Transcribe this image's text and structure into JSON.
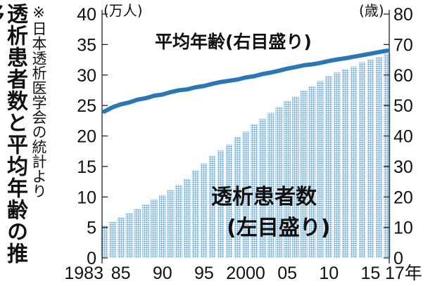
{
  "title": "透析患者数と平均年齢の推移",
  "note": "※日本透析医学会の統計より",
  "chart_data": {
    "type": "bar",
    "x": [
      1983,
      1984,
      1985,
      1986,
      1987,
      1988,
      1989,
      1990,
      1991,
      1992,
      1993,
      1994,
      1995,
      1996,
      1997,
      1998,
      1999,
      2000,
      2001,
      2002,
      2003,
      2004,
      2005,
      2006,
      2007,
      2008,
      2009,
      2010,
      2011,
      2012,
      2013,
      2014,
      2015,
      2016,
      2017
    ],
    "xtick_labels": [
      "1983",
      "85",
      "90",
      "95",
      "2000",
      "05",
      "10",
      "15",
      "17年"
    ],
    "xtick_years": [
      1983,
      1985,
      1990,
      1995,
      2000,
      2005,
      2010,
      2015,
      2017
    ],
    "left_unit": "(万人)",
    "right_unit": "(歳)",
    "yleft_ticks": [
      0,
      5,
      10,
      15,
      20,
      25,
      30,
      35,
      40
    ],
    "yright_ticks": [
      0,
      10,
      20,
      30,
      40,
      50,
      60,
      70,
      80
    ],
    "ylim_left": [
      0,
      40
    ],
    "ylim_right": [
      0,
      80
    ],
    "series": [
      {
        "name": "透析患者数",
        "name_line2": "(左目盛り)",
        "axis": "left",
        "type": "bar",
        "color": "#5aa0d2",
        "values": [
          5.3,
          5.9,
          6.6,
          7.3,
          8.0,
          8.8,
          9.6,
          10.3,
          11.1,
          12.0,
          13.0,
          14.4,
          15.5,
          16.8,
          17.6,
          18.6,
          19.8,
          20.7,
          21.9,
          22.8,
          23.8,
          24.8,
          25.8,
          26.5,
          27.5,
          28.2,
          29.0,
          29.8,
          30.4,
          31.0,
          31.4,
          32.1,
          32.5,
          32.9,
          33.5
        ]
      },
      {
        "name": "平均年齢(右目盛り)",
        "axis": "right",
        "type": "line",
        "color": "#2a77b6",
        "values": [
          48.0,
          49.4,
          50.4,
          51.0,
          51.9,
          52.4,
          53.2,
          53.6,
          54.4,
          55.0,
          55.3,
          56.0,
          56.4,
          57.1,
          57.7,
          58.1,
          58.5,
          59.2,
          59.6,
          60.3,
          60.8,
          61.4,
          62.1,
          62.6,
          63.2,
          63.5,
          64.0,
          64.6,
          65.1,
          65.5,
          66.0,
          66.5,
          67.0,
          67.5,
          68.0
        ]
      }
    ]
  }
}
